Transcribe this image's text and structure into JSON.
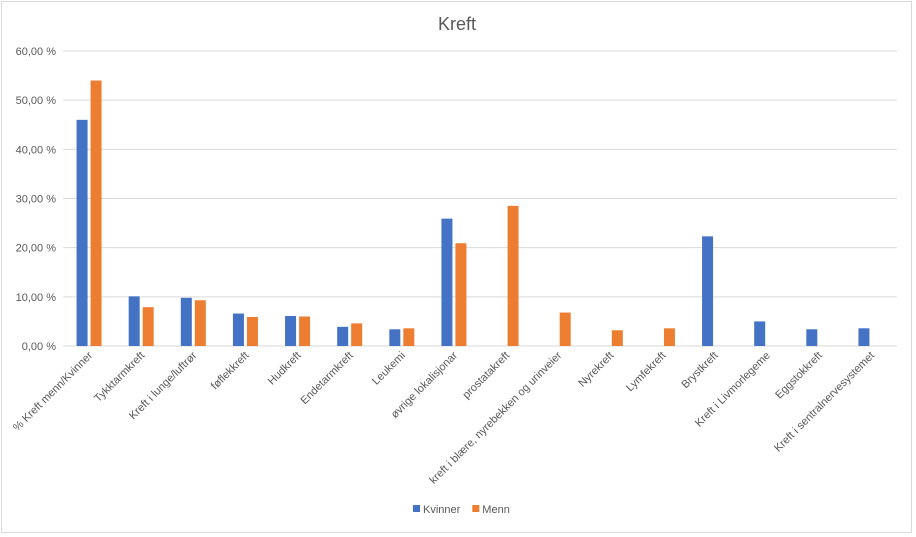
{
  "chart_data": {
    "type": "bar",
    "title": "Kreft",
    "categories": [
      "% Kreft menn/Kvinner",
      "Tykktarmkreft",
      "Kreft i lunge/luftrør",
      "føflekkreft",
      "Hudkreft",
      "Endetarmkreft",
      "Leukemi",
      "øvrige lokalisjonar",
      "prostatakreft",
      "kreft i blære, nyrebekken og urinveier",
      "Nyrekreft",
      "Lymfekreft",
      "Brystkreft",
      "Kreft i Livmorlegeme",
      "Eggstokkreft",
      "Kreft i sentralnervesystemet"
    ],
    "series": [
      {
        "name": "Kvinner",
        "color": "#4472c4",
        "values": [
          46.0,
          10.1,
          9.8,
          6.6,
          6.1,
          3.9,
          3.4,
          25.9,
          null,
          null,
          null,
          null,
          22.3,
          5.0,
          3.4,
          3.6
        ]
      },
      {
        "name": "Menn",
        "color": "#ed7d31",
        "values": [
          54.0,
          7.9,
          9.3,
          5.9,
          6.0,
          4.6,
          3.6,
          20.9,
          28.5,
          6.8,
          3.2,
          3.6,
          null,
          null,
          null,
          null
        ]
      }
    ],
    "ylim": [
      0,
      60
    ],
    "yticks": [
      "0,00 %",
      "10,00 %",
      "20,00 %",
      "30,00 %",
      "40,00 %",
      "50,00 %",
      "60,00 %"
    ],
    "ytick_values": [
      0,
      10,
      20,
      30,
      40,
      50,
      60
    ],
    "xlabel": "",
    "ylabel": "",
    "grid": true,
    "legend_position": "bottom",
    "gridline_color": "#d9d9d9",
    "axis_text_color": "#595959"
  }
}
